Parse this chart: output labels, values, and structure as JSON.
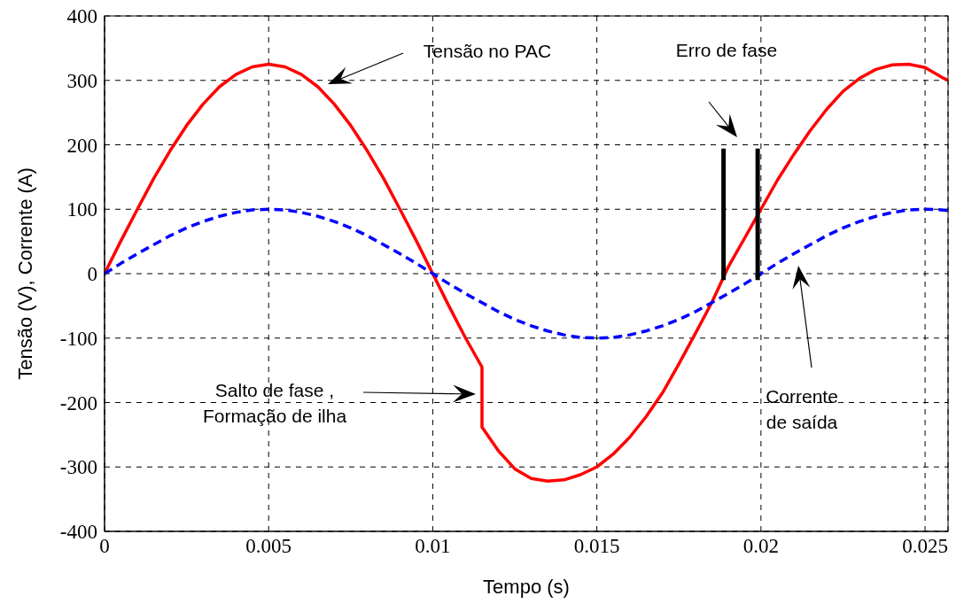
{
  "chart_data": {
    "type": "line",
    "xlabel": "Tempo (s)",
    "ylabel": "Tensão (V), Corrente (A)",
    "xlim": [
      0,
      0.0257
    ],
    "ylim": [
      -400,
      400
    ],
    "xticks": [
      0,
      0.005,
      0.01,
      0.015,
      0.02,
      0.025
    ],
    "yticks": [
      -400,
      -300,
      -200,
      -100,
      0,
      100,
      200,
      300,
      400
    ],
    "grid": true,
    "series": [
      {
        "color": "#ff0000",
        "line_style": "solid",
        "x": [
          0,
          0.0005,
          0.001,
          0.0015,
          0.002,
          0.0025,
          0.003,
          0.0035,
          0.004,
          0.0045,
          0.005,
          0.0055,
          0.006,
          0.0065,
          0.007,
          0.0075,
          0.008,
          0.0085,
          0.009,
          0.0095,
          0.01,
          0.0105,
          0.011,
          0.0115,
          0.0115,
          0.012,
          0.0125,
          0.013,
          0.0135,
          0.014,
          0.0145,
          0.015,
          0.0155,
          0.016,
          0.0165,
          0.017,
          0.0175,
          0.018,
          0.0185,
          0.019,
          0.0195,
          0.02,
          0.0205,
          0.021,
          0.0215,
          0.022,
          0.0225,
          0.023,
          0.0235,
          0.024,
          0.0245,
          0.025,
          0.0255,
          0.0257
        ],
        "values": [
          0,
          51,
          100,
          148,
          191,
          230,
          263,
          290,
          309,
          321,
          325,
          321,
          309,
          290,
          263,
          230,
          191,
          148,
          100,
          51,
          0,
          -51,
          -100,
          -145,
          -238,
          -275,
          -303,
          -318,
          -322,
          -320,
          -312,
          -300,
          -280,
          -254,
          -222,
          -185,
          -140,
          -93,
          -45,
          10,
          55,
          100,
          145,
          185,
          222,
          255,
          283,
          303,
          317,
          324,
          325,
          320,
          305,
          300
        ]
      },
      {
        "color": "#0000ff",
        "line_style": "dashed",
        "x": [
          0,
          0.0005,
          0.001,
          0.0015,
          0.002,
          0.0025,
          0.003,
          0.0035,
          0.004,
          0.0045,
          0.005,
          0.0055,
          0.006,
          0.0065,
          0.007,
          0.0075,
          0.008,
          0.0085,
          0.009,
          0.0095,
          0.01,
          0.0105,
          0.011,
          0.0115,
          0.012,
          0.0125,
          0.013,
          0.0135,
          0.014,
          0.0145,
          0.015,
          0.0155,
          0.016,
          0.0165,
          0.017,
          0.0175,
          0.018,
          0.0185,
          0.019,
          0.0195,
          0.02,
          0.0205,
          0.021,
          0.0215,
          0.022,
          0.0225,
          0.023,
          0.0235,
          0.024,
          0.0245,
          0.025,
          0.0255,
          0.0257
        ],
        "values": [
          0,
          16,
          31,
          45,
          59,
          71,
          81,
          89,
          95,
          99,
          100,
          99,
          95,
          89,
          81,
          71,
          59,
          45,
          31,
          16,
          0,
          -16,
          -31,
          -45,
          -59,
          -71,
          -81,
          -89,
          -95,
          -99,
          -100,
          -99,
          -95,
          -89,
          -81,
          -71,
          -59,
          -45,
          -31,
          -16,
          0,
          16,
          31,
          45,
          59,
          71,
          81,
          89,
          95,
          99,
          100,
          99,
          98
        ]
      },
      {
        "color": "#000000",
        "line_style": "solid",
        "x": [
          0.01886,
          0.01886
        ],
        "values": [
          -10,
          194
        ]
      },
      {
        "color": "#000000",
        "line_style": "solid",
        "x": [
          0.0199,
          0.0199
        ],
        "values": [
          -10,
          194
        ]
      }
    ],
    "annotations": [
      "Tensão no PAC",
      "Erro de fase",
      "Corrente\nde saída",
      "Salto de fase ,\nFormação de ilha"
    ]
  }
}
